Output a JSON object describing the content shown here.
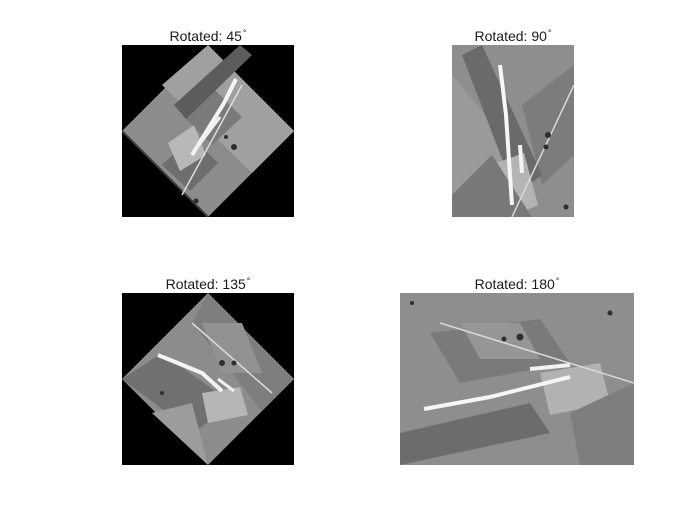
{
  "panels": [
    {
      "title": "Rotated: 45",
      "degree_sign": "°",
      "angle": 45
    },
    {
      "title": "Rotated: 90",
      "degree_sign": "°",
      "angle": 90
    },
    {
      "title": "Rotated: 135",
      "degree_sign": "°",
      "angle": 135
    },
    {
      "title": "Rotated: 180",
      "degree_sign": "°",
      "angle": 180
    }
  ],
  "colors": {
    "background": "#ffffff",
    "image_background": "#000000",
    "sem_mid": "#8a8a8a",
    "sem_dark": "#4a4a4a",
    "sem_light": "#e8e8e8"
  }
}
